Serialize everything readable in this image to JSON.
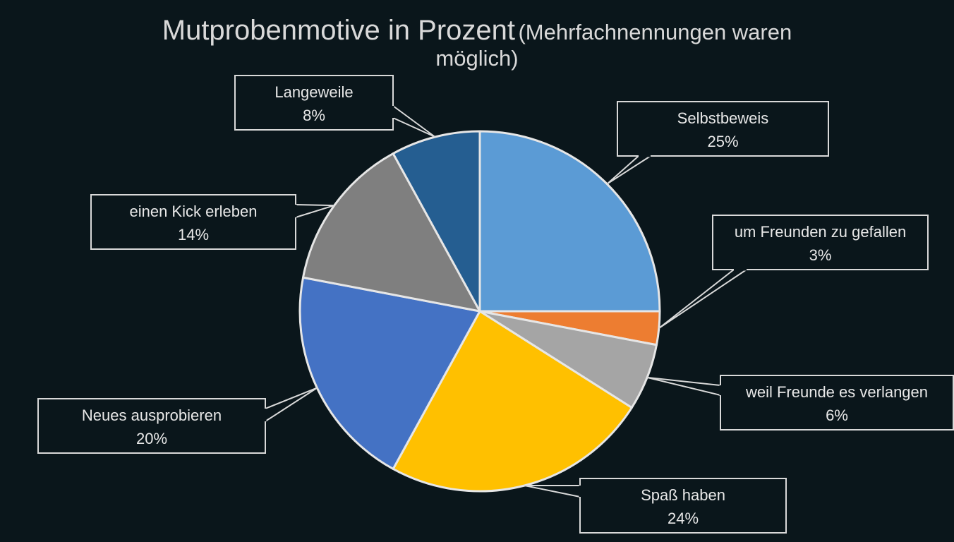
{
  "chart_data": {
    "type": "pie",
    "title": "Mutprobenmotive in Prozent",
    "subtitle": "(Mehrfachnennungen waren möglich)",
    "slices": [
      {
        "label": "Selbstbeweis",
        "value": 25,
        "value_label": "25%",
        "color": "#5b9bd5"
      },
      {
        "label": "um Freunden zu gefallen",
        "value": 3,
        "value_label": "3%",
        "color": "#ed7d31"
      },
      {
        "label": "weil Freunde es verlangen",
        "value": 6,
        "value_label": "6%",
        "color": "#a5a5a5"
      },
      {
        "label": "Spaß haben",
        "value": 24,
        "value_label": "24%",
        "color": "#ffc000"
      },
      {
        "label": "Neues ausprobieren",
        "value": 20,
        "value_label": "20%",
        "color": "#4472c4"
      },
      {
        "label": "einen Kick erleben",
        "value": 14,
        "value_label": "14%",
        "color": "#7f7f7f"
      },
      {
        "label": "Langeweile",
        "value": 8,
        "value_label": "8%",
        "color": "#255e91"
      }
    ],
    "start_angle": "12 o'clock, clockwise",
    "slice_border_color": "#e6e6e6",
    "background_color": "#0a161b",
    "label_style": "callout boxes with leader lines"
  }
}
